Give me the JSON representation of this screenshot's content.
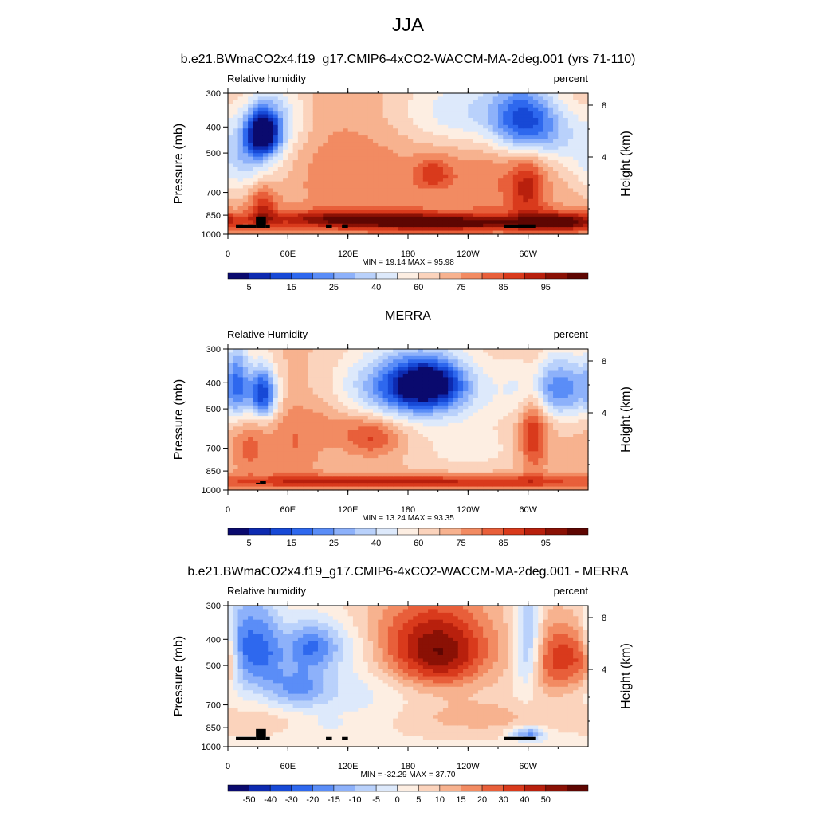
{
  "page_title": "JJA",
  "palettes": {
    "abs": [
      "#0a0a6e",
      "#0d2ab0",
      "#1749d6",
      "#2e68ee",
      "#5a8df7",
      "#8db1fa",
      "#b9d1fb",
      "#dde9fb",
      "#fdeee2",
      "#fbd3bc",
      "#f7b28f",
      "#f28b62",
      "#e85f3a",
      "#d93a1c",
      "#b8200d",
      "#8a1105",
      "#5e0602"
    ],
    "diff": [
      "#0a0a6e",
      "#0d2ab0",
      "#1749d6",
      "#2e68ee",
      "#5a8df7",
      "#8db1fa",
      "#b9d1fb",
      "#dde9fb",
      "#fdeee2",
      "#fbd3bc",
      "#f7b28f",
      "#f28b62",
      "#e85f3a",
      "#d93a1c",
      "#b8200d",
      "#8a1105",
      "#5e0602"
    ]
  },
  "chart_data": [
    {
      "type": "heatmap",
      "name": "model",
      "title": "b.e21.BWmaCO2x4.f19_g17.CMIP6-4xCO2-WACCM-MA-2deg.001 (yrs 71-110)",
      "left_string": "Relative humidity",
      "right_string": "percent",
      "ylabel": "Pressure (mb)",
      "y2label": "Height (km)",
      "x_ticks": [
        "0",
        "60E",
        "120E",
        "180",
        "120W",
        "60W"
      ],
      "y_ticks": [
        "300",
        "400",
        "500",
        "700",
        "850",
        "1000"
      ],
      "y2_ticks": [
        "8",
        "4"
      ],
      "stats": "MIN =  19.14  MAX =  95.98",
      "min": 19.14,
      "max": 95.98,
      "colorbar_labels": [
        "5",
        "15",
        "25",
        "40",
        "60",
        "75",
        "85",
        "95"
      ],
      "palette": "abs"
    },
    {
      "type": "heatmap",
      "name": "obs",
      "title": "MERRA",
      "left_string": "Relative Humidity",
      "right_string": "percent",
      "ylabel": "Pressure (mb)",
      "y2label": "Height (km)",
      "x_ticks": [
        "0",
        "60E",
        "120E",
        "180",
        "120W",
        "60W"
      ],
      "y_ticks": [
        "300",
        "400",
        "500",
        "700",
        "850",
        "1000"
      ],
      "y2_ticks": [
        "8",
        "4"
      ],
      "stats": "MIN =  13.24  MAX =  93.35",
      "min": 13.24,
      "max": 93.35,
      "colorbar_labels": [
        "5",
        "15",
        "25",
        "40",
        "60",
        "75",
        "85",
        "95"
      ],
      "palette": "abs"
    },
    {
      "type": "heatmap",
      "name": "diff",
      "title": "b.e21.BWmaCO2x4.f19_g17.CMIP6-4xCO2-WACCM-MA-2deg.001 - MERRA",
      "left_string": "Relative humidity",
      "right_string": "percent",
      "ylabel": "Pressure (mb)",
      "y2label": "Height (km)",
      "x_ticks": [
        "0",
        "60E",
        "120E",
        "180",
        "120W",
        "60W"
      ],
      "y_ticks": [
        "300",
        "400",
        "500",
        "700",
        "850",
        "1000"
      ],
      "y2_ticks": [
        "8",
        "4"
      ],
      "stats": "MIN = -32.29  MAX =  37.70",
      "min": -32.29,
      "max": 37.7,
      "colorbar_labels": [
        "-50",
        "-40",
        "-30",
        "-20",
        "-15",
        "-10",
        "-5",
        "0",
        "5",
        "10",
        "15",
        "20",
        "30",
        "40",
        "50"
      ],
      "palette": "diff"
    }
  ]
}
